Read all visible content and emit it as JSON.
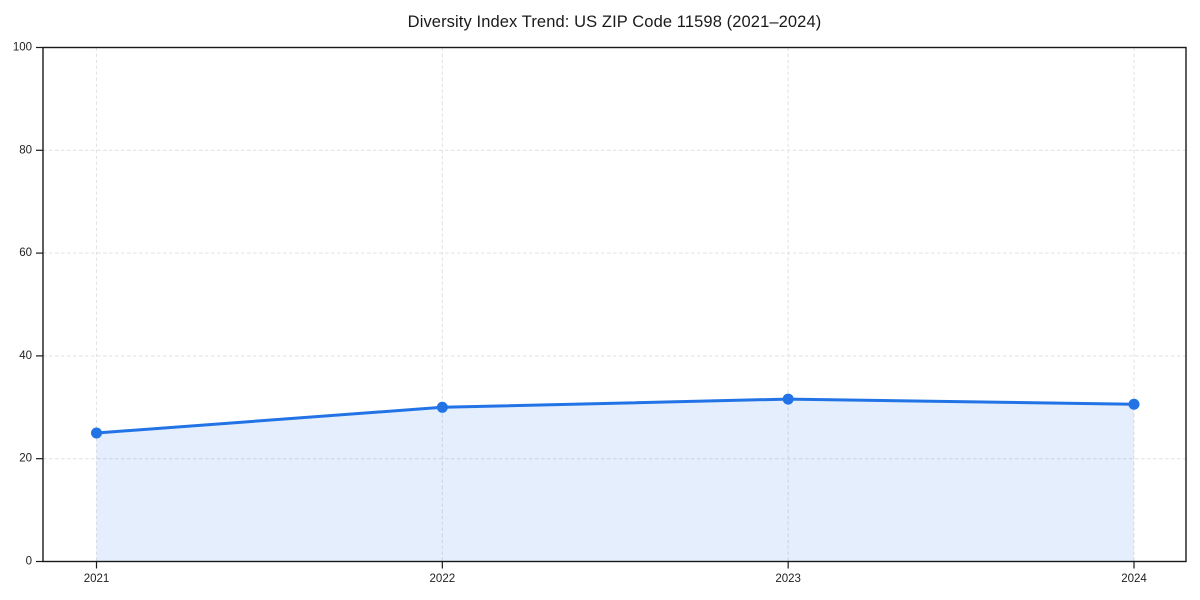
{
  "figure": {
    "background": "#ffffff"
  },
  "chart_data": {
    "type": "area",
    "title": "Diversity Index Trend: US ZIP Code 11598 (2021–2024)",
    "x": [
      "2021",
      "2022",
      "2023",
      "2024"
    ],
    "values": [
      25,
      30,
      31.6,
      30.6
    ],
    "xlabel": "",
    "ylabel": "",
    "ylim": [
      0,
      100
    ],
    "yticks": [
      0,
      20,
      40,
      60,
      80,
      100
    ],
    "grid": true,
    "grid_style": "dashed",
    "legend_position": "none",
    "line_color": "#2273e6",
    "marker_color": "#2273e6",
    "fill_color": "#2273e6",
    "fill_opacity": 0.12,
    "grid_color": "#e4e4e4",
    "axis_color": "#1a1a1a",
    "tick_label_color": "#1f1f1f"
  }
}
